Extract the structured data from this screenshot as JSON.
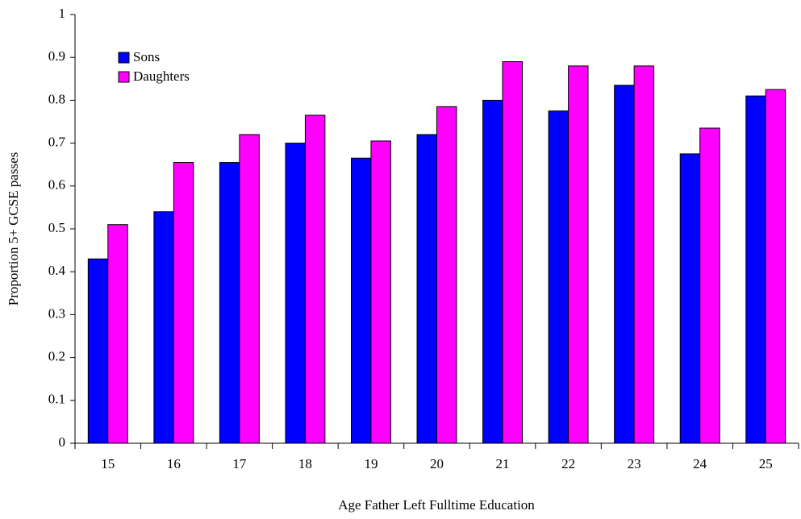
{
  "chart_data": {
    "type": "bar",
    "x_label": "Age Father Left Fulltime Education",
    "y_label": "Proportion 5+ GCSE passes",
    "categories": [
      "15",
      "16",
      "17",
      "18",
      "19",
      "20",
      "21",
      "22",
      "23",
      "24",
      "25"
    ],
    "series": [
      {
        "name": "Sons",
        "color": "#0000ff",
        "values": [
          0.43,
          0.54,
          0.655,
          0.7,
          0.665,
          0.72,
          0.8,
          0.775,
          0.835,
          0.675,
          0.81
        ]
      },
      {
        "name": "Daughters",
        "color": "#ff00ff",
        "values": [
          0.51,
          0.655,
          0.72,
          0.765,
          0.705,
          0.785,
          0.89,
          0.88,
          0.88,
          0.735,
          0.825
        ]
      }
    ],
    "ylim": [
      0,
      1
    ],
    "yticks": [
      0,
      0.1,
      0.2,
      0.3,
      0.4,
      0.5,
      0.6,
      0.7,
      0.8,
      0.9,
      1
    ],
    "grid": false,
    "legend": "upper left"
  }
}
